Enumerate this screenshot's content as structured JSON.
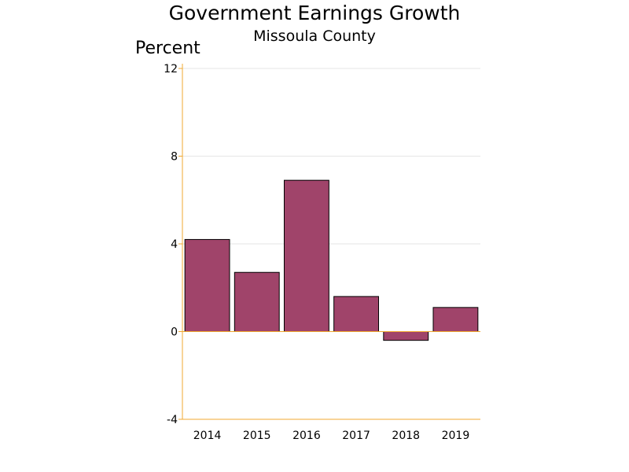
{
  "chart_data": {
    "type": "bar",
    "title": "Government Earnings Growth",
    "subtitle": "Missoula County",
    "ylabel": "Percent",
    "xlabel": "",
    "categories": [
      "2014",
      "2015",
      "2016",
      "2017",
      "2018",
      "2019"
    ],
    "values": [
      4.2,
      2.7,
      6.9,
      1.6,
      -0.4,
      1.1
    ],
    "ylim": [
      -4,
      12
    ],
    "yticks": [
      "-4",
      "0",
      "4",
      "8",
      "12"
    ],
    "grid": true,
    "legend": "none",
    "bar_color": "#a0446a",
    "bar_edge_color": "#000000",
    "axis_color": "#f0a830",
    "grid_color": "#e6e6e6"
  }
}
